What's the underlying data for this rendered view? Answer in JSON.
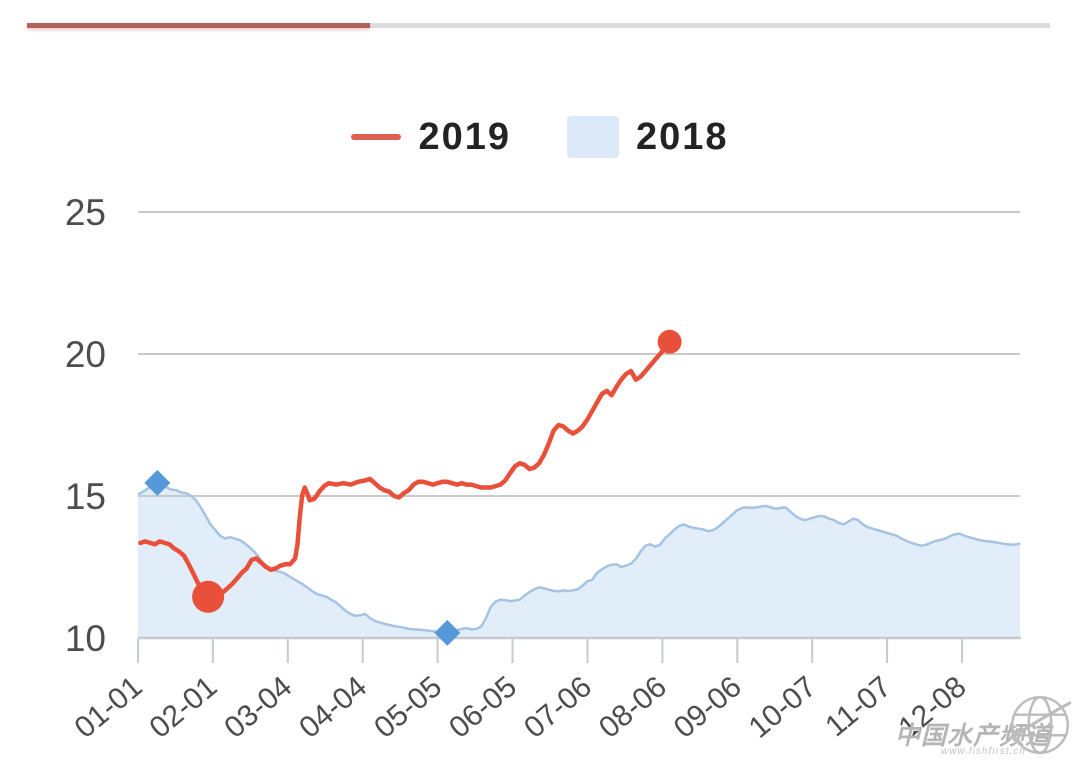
{
  "page": {
    "background": "#ffffff"
  },
  "progress_bar": {
    "fill_color": "#b2625b",
    "track_color": "#dcdcdc"
  },
  "legend": {
    "items": [
      {
        "label": "2019",
        "type": "line",
        "color": "#e8503a"
      },
      {
        "label": "2018",
        "type": "area",
        "color": "#dce9f8"
      }
    ]
  },
  "watermark": {
    "title": "中国水产频道",
    "url": "www.fishfirst.cn"
  },
  "chart_data": {
    "type": "line",
    "title": "",
    "xlabel": "",
    "ylabel": "",
    "ylim": [
      10,
      25
    ],
    "xlim_days": [
      0,
      365
    ],
    "grid_on": true,
    "grid_values": [
      25,
      20,
      15
    ],
    "yticks": [
      25,
      20,
      15,
      10
    ],
    "xticks": [
      {
        "label": "01-01",
        "day": 0
      },
      {
        "label": "02-01",
        "day": 31
      },
      {
        "label": "03-04",
        "day": 62
      },
      {
        "label": "04-04",
        "day": 93
      },
      {
        "label": "05-05",
        "day": 124
      },
      {
        "label": "06-05",
        "day": 155
      },
      {
        "label": "07-06",
        "day": 186
      },
      {
        "label": "08-06",
        "day": 217
      },
      {
        "label": "09-06",
        "day": 248
      },
      {
        "label": "10-07",
        "day": 279
      },
      {
        "label": "11-07",
        "day": 310
      },
      {
        "label": "12-08",
        "day": 341
      }
    ],
    "axis_colors": {
      "grid": "#c9c9c9",
      "axis": "#c3cad2",
      "tick": "#c3cad2",
      "label": "#4d4d4d"
    },
    "series": [
      {
        "name": "2018",
        "style": "area",
        "line_color": "#a6c3e2",
        "fill_color": "#cfe4f7",
        "marker_color": "#5599d8",
        "markers": [
          {
            "day": 8,
            "value": 15.46,
            "shape": "diamond",
            "note": "max"
          },
          {
            "day": 128,
            "value": 10.18,
            "shape": "diamond",
            "note": "min"
          }
        ],
        "points": [
          [
            0,
            15.05
          ],
          [
            3,
            15.2
          ],
          [
            6,
            15.38
          ],
          [
            8,
            15.46
          ],
          [
            10,
            15.4
          ],
          [
            12,
            15.3
          ],
          [
            14,
            15.22
          ],
          [
            16,
            15.2
          ],
          [
            18,
            15.12
          ],
          [
            20,
            15.1
          ],
          [
            22,
            15.0
          ],
          [
            24,
            14.85
          ],
          [
            26,
            14.6
          ],
          [
            28,
            14.3
          ],
          [
            30,
            14.0
          ],
          [
            32,
            13.8
          ],
          [
            34,
            13.6
          ],
          [
            36,
            13.5
          ],
          [
            38,
            13.55
          ],
          [
            40,
            13.5
          ],
          [
            42,
            13.45
          ],
          [
            44,
            13.35
          ],
          [
            46,
            13.2
          ],
          [
            48,
            13.05
          ],
          [
            50,
            12.85
          ],
          [
            52,
            12.6
          ],
          [
            54,
            12.45
          ],
          [
            56,
            12.38
          ],
          [
            58,
            12.35
          ],
          [
            60,
            12.3
          ],
          [
            62,
            12.2
          ],
          [
            64,
            12.1
          ],
          [
            66,
            12.0
          ],
          [
            68,
            11.9
          ],
          [
            70,
            11.78
          ],
          [
            72,
            11.65
          ],
          [
            74,
            11.55
          ],
          [
            76,
            11.5
          ],
          [
            78,
            11.45
          ],
          [
            80,
            11.35
          ],
          [
            82,
            11.25
          ],
          [
            84,
            11.1
          ],
          [
            86,
            10.95
          ],
          [
            88,
            10.85
          ],
          [
            90,
            10.78
          ],
          [
            92,
            10.8
          ],
          [
            94,
            10.85
          ],
          [
            96,
            10.7
          ],
          [
            98,
            10.6
          ],
          [
            100,
            10.55
          ],
          [
            103,
            10.48
          ],
          [
            106,
            10.42
          ],
          [
            109,
            10.38
          ],
          [
            112,
            10.32
          ],
          [
            115,
            10.3
          ],
          [
            118,
            10.28
          ],
          [
            121,
            10.25
          ],
          [
            124,
            10.22
          ],
          [
            126,
            10.2
          ],
          [
            128,
            10.18
          ],
          [
            130,
            10.22
          ],
          [
            132,
            10.28
          ],
          [
            134,
            10.32
          ],
          [
            136,
            10.35
          ],
          [
            138,
            10.3
          ],
          [
            140,
            10.32
          ],
          [
            142,
            10.4
          ],
          [
            144,
            10.7
          ],
          [
            146,
            11.1
          ],
          [
            148,
            11.28
          ],
          [
            150,
            11.35
          ],
          [
            152,
            11.33
          ],
          [
            154,
            11.3
          ],
          [
            156,
            11.32
          ],
          [
            158,
            11.35
          ],
          [
            160,
            11.5
          ],
          [
            162,
            11.62
          ],
          [
            164,
            11.72
          ],
          [
            166,
            11.78
          ],
          [
            168,
            11.75
          ],
          [
            170,
            11.7
          ],
          [
            172,
            11.66
          ],
          [
            174,
            11.64
          ],
          [
            176,
            11.68
          ],
          [
            178,
            11.65
          ],
          [
            180,
            11.68
          ],
          [
            182,
            11.72
          ],
          [
            184,
            11.85
          ],
          [
            186,
            12.0
          ],
          [
            188,
            12.05
          ],
          [
            190,
            12.3
          ],
          [
            192,
            12.42
          ],
          [
            194,
            12.52
          ],
          [
            196,
            12.58
          ],
          [
            198,
            12.6
          ],
          [
            200,
            12.5
          ],
          [
            202,
            12.55
          ],
          [
            204,
            12.62
          ],
          [
            206,
            12.78
          ],
          [
            208,
            13.05
          ],
          [
            210,
            13.25
          ],
          [
            212,
            13.3
          ],
          [
            214,
            13.22
          ],
          [
            216,
            13.28
          ],
          [
            218,
            13.5
          ],
          [
            220,
            13.65
          ],
          [
            222,
            13.82
          ],
          [
            224,
            13.95
          ],
          [
            226,
            14.0
          ],
          [
            228,
            13.92
          ],
          [
            230,
            13.88
          ],
          [
            232,
            13.85
          ],
          [
            234,
            13.82
          ],
          [
            236,
            13.76
          ],
          [
            238,
            13.8
          ],
          [
            240,
            13.9
          ],
          [
            242,
            14.05
          ],
          [
            244,
            14.2
          ],
          [
            246,
            14.35
          ],
          [
            248,
            14.5
          ],
          [
            250,
            14.58
          ],
          [
            252,
            14.6
          ],
          [
            254,
            14.58
          ],
          [
            256,
            14.6
          ],
          [
            258,
            14.63
          ],
          [
            260,
            14.65
          ],
          [
            262,
            14.6
          ],
          [
            264,
            14.55
          ],
          [
            266,
            14.58
          ],
          [
            268,
            14.6
          ],
          [
            270,
            14.45
          ],
          [
            272,
            14.3
          ],
          [
            274,
            14.2
          ],
          [
            276,
            14.15
          ],
          [
            278,
            14.2
          ],
          [
            280,
            14.25
          ],
          [
            282,
            14.3
          ],
          [
            284,
            14.28
          ],
          [
            286,
            14.2
          ],
          [
            288,
            14.15
          ],
          [
            290,
            14.05
          ],
          [
            292,
            14.0
          ],
          [
            294,
            14.1
          ],
          [
            296,
            14.2
          ],
          [
            298,
            14.15
          ],
          [
            300,
            14.0
          ],
          [
            302,
            13.9
          ],
          [
            304,
            13.85
          ],
          [
            306,
            13.8
          ],
          [
            308,
            13.75
          ],
          [
            310,
            13.7
          ],
          [
            312,
            13.65
          ],
          [
            314,
            13.6
          ],
          [
            316,
            13.5
          ],
          [
            318,
            13.42
          ],
          [
            320,
            13.35
          ],
          [
            322,
            13.3
          ],
          [
            324,
            13.25
          ],
          [
            326,
            13.28
          ],
          [
            328,
            13.35
          ],
          [
            330,
            13.42
          ],
          [
            332,
            13.45
          ],
          [
            334,
            13.5
          ],
          [
            336,
            13.58
          ],
          [
            338,
            13.65
          ],
          [
            340,
            13.68
          ],
          [
            342,
            13.6
          ],
          [
            344,
            13.55
          ],
          [
            346,
            13.5
          ],
          [
            348,
            13.45
          ],
          [
            350,
            13.42
          ],
          [
            352,
            13.4
          ],
          [
            354,
            13.38
          ],
          [
            356,
            13.35
          ],
          [
            358,
            13.32
          ],
          [
            360,
            13.3
          ],
          [
            362,
            13.28
          ],
          [
            364,
            13.3
          ],
          [
            365,
            13.35
          ]
        ]
      },
      {
        "name": "2019",
        "style": "line",
        "color": "#e8503a",
        "markers": [
          {
            "day": 29,
            "value": 11.45,
            "shape": "circle",
            "r": 16,
            "note": "min"
          },
          {
            "day": 220,
            "value": 20.43,
            "shape": "circle",
            "r": 12,
            "note": "latest"
          }
        ],
        "points": [
          [
            1,
            13.35
          ],
          [
            3,
            13.4
          ],
          [
            5,
            13.35
          ],
          [
            7,
            13.3
          ],
          [
            9,
            13.4
          ],
          [
            11,
            13.35
          ],
          [
            13,
            13.3
          ],
          [
            15,
            13.15
          ],
          [
            17,
            13.05
          ],
          [
            19,
            12.9
          ],
          [
            21,
            12.6
          ],
          [
            23,
            12.25
          ],
          [
            25,
            11.9
          ],
          [
            27,
            11.6
          ],
          [
            29,
            11.45
          ],
          [
            31,
            11.55
          ],
          [
            33,
            11.7
          ],
          [
            35,
            11.6
          ],
          [
            37,
            11.75
          ],
          [
            39,
            11.9
          ],
          [
            41,
            12.1
          ],
          [
            43,
            12.3
          ],
          [
            45,
            12.45
          ],
          [
            47,
            12.75
          ],
          [
            49,
            12.8
          ],
          [
            51,
            12.65
          ],
          [
            53,
            12.5
          ],
          [
            55,
            12.4
          ],
          [
            57,
            12.45
          ],
          [
            59,
            12.55
          ],
          [
            61,
            12.6
          ],
          [
            63,
            12.6
          ],
          [
            65,
            12.8
          ],
          [
            66,
            13.3
          ],
          [
            67,
            14.3
          ],
          [
            68,
            15.05
          ],
          [
            69,
            15.3
          ],
          [
            70,
            15.1
          ],
          [
            71,
            14.85
          ],
          [
            73,
            14.9
          ],
          [
            75,
            15.15
          ],
          [
            77,
            15.35
          ],
          [
            79,
            15.45
          ],
          [
            82,
            15.4
          ],
          [
            85,
            15.45
          ],
          [
            88,
            15.4
          ],
          [
            91,
            15.5
          ],
          [
            94,
            15.55
          ],
          [
            96,
            15.6
          ],
          [
            98,
            15.45
          ],
          [
            100,
            15.3
          ],
          [
            102,
            15.2
          ],
          [
            104,
            15.15
          ],
          [
            106,
            15.0
          ],
          [
            108,
            14.95
          ],
          [
            110,
            15.1
          ],
          [
            112,
            15.2
          ],
          [
            114,
            15.4
          ],
          [
            116,
            15.5
          ],
          [
            118,
            15.5
          ],
          [
            120,
            15.45
          ],
          [
            122,
            15.4
          ],
          [
            124,
            15.45
          ],
          [
            126,
            15.5
          ],
          [
            128,
            15.5
          ],
          [
            130,
            15.45
          ],
          [
            132,
            15.4
          ],
          [
            134,
            15.45
          ],
          [
            136,
            15.4
          ],
          [
            138,
            15.4
          ],
          [
            140,
            15.35
          ],
          [
            142,
            15.3
          ],
          [
            144,
            15.3
          ],
          [
            146,
            15.3
          ],
          [
            148,
            15.35
          ],
          [
            150,
            15.4
          ],
          [
            152,
            15.55
          ],
          [
            154,
            15.8
          ],
          [
            156,
            16.05
          ],
          [
            158,
            16.15
          ],
          [
            160,
            16.1
          ],
          [
            162,
            15.95
          ],
          [
            164,
            16.0
          ],
          [
            166,
            16.15
          ],
          [
            168,
            16.45
          ],
          [
            170,
            16.85
          ],
          [
            172,
            17.3
          ],
          [
            174,
            17.5
          ],
          [
            176,
            17.45
          ],
          [
            178,
            17.3
          ],
          [
            180,
            17.2
          ],
          [
            182,
            17.3
          ],
          [
            184,
            17.45
          ],
          [
            186,
            17.7
          ],
          [
            188,
            18.0
          ],
          [
            190,
            18.3
          ],
          [
            192,
            18.6
          ],
          [
            194,
            18.7
          ],
          [
            196,
            18.55
          ],
          [
            198,
            18.85
          ],
          [
            200,
            19.1
          ],
          [
            202,
            19.3
          ],
          [
            204,
            19.4
          ],
          [
            206,
            19.1
          ],
          [
            208,
            19.2
          ],
          [
            210,
            19.4
          ],
          [
            212,
            19.6
          ],
          [
            214,
            19.8
          ],
          [
            216,
            20.0
          ],
          [
            218,
            20.2
          ],
          [
            220,
            20.43
          ]
        ]
      }
    ]
  }
}
